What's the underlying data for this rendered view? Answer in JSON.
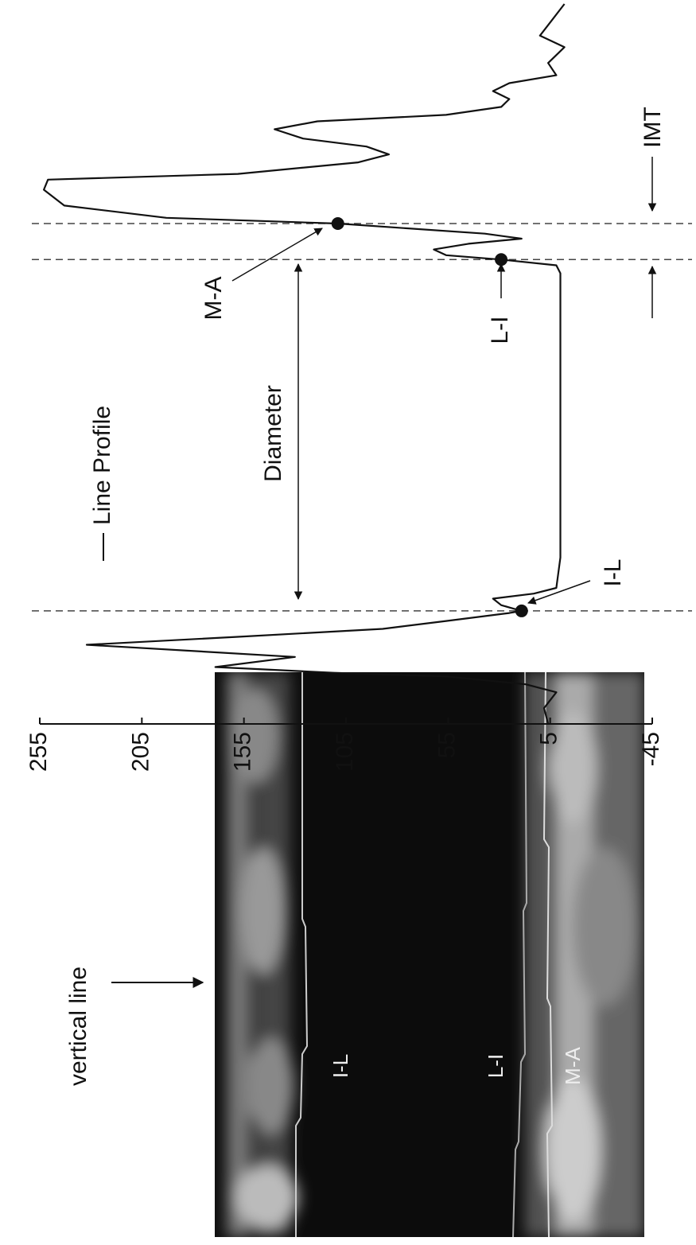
{
  "chart_data": {
    "type": "line",
    "series": [
      {
        "name": "Line Profile",
        "color": "#111111",
        "x": [
          0,
          2.2,
          4.4,
          5.5,
          6.6,
          7.1,
          7.9,
          9.3,
          11,
          12.1,
          13.2,
          14.3,
          15.4,
          15.7,
          16.5,
          17.4,
          18.1,
          18.9,
          23.1,
          45.1,
          62.6,
          63.7,
          64.5,
          65.1,
          65.9,
          66.7,
          67.4,
          68.1,
          69.5,
          70.3,
          72,
          74.2,
          75.6,
          76.4,
          78,
          79.1,
          80.2,
          81.3,
          82.6,
          83.7,
          84.6,
          85.7,
          86.8,
          87.9,
          89,
          90.1,
          91.8,
          94,
          95.6,
          97.8,
          100
        ],
        "values": [
          6,
          8,
          2,
          17,
          56,
          111,
          169,
          130,
          232,
          158,
          87,
          56,
          25,
          19,
          29,
          33,
          13,
          2,
          0,
          0,
          0,
          2,
          29,
          56,
          62,
          45,
          19,
          37,
          109,
          193,
          243,
          253,
          251,
          158,
          99,
          84,
          95,
          126,
          140,
          119,
          56,
          29,
          25,
          33,
          25,
          2,
          6,
          -2,
          10,
          4,
          -2
        ]
      }
    ],
    "xlim": [
      0,
      100
    ],
    "ylim": [
      -45,
      255
    ],
    "yticks": [
      255,
      205,
      155,
      105,
      55,
      5,
      -45
    ],
    "annotations": [
      "Diameter",
      "M-A",
      "L-I",
      "I-L",
      "IMT"
    ]
  },
  "image": {
    "caption": "vertical line",
    "labels": [
      "I-L",
      "L-I",
      "M-A"
    ]
  }
}
